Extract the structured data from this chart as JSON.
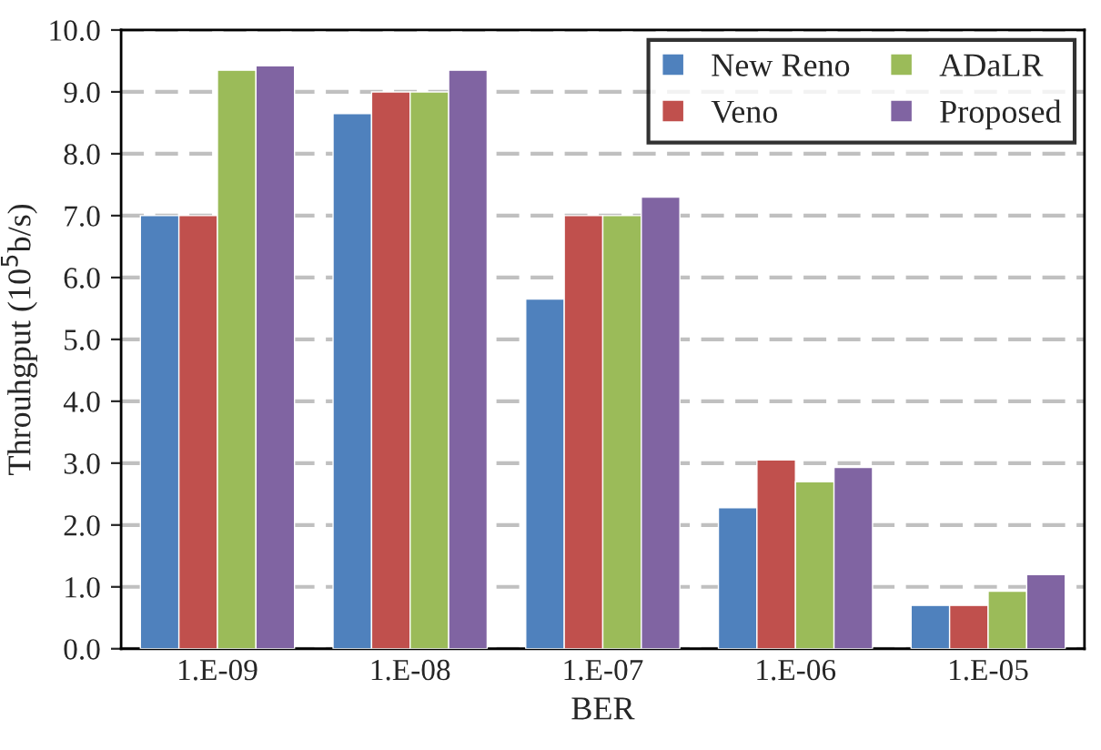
{
  "chart_data": {
    "type": "bar",
    "xlabel": "BER",
    "ylabel": "Throuhgput (10$^{5}$b/s)",
    "categories": [
      "1.E-09",
      "1.E-08",
      "1.E-07",
      "1.E-06",
      "1.E-05"
    ],
    "series": [
      {
        "name": "New Reno",
        "color": "#4f81bd",
        "values": [
          7.0,
          8.65,
          5.65,
          2.28,
          0.7
        ]
      },
      {
        "name": "Veno",
        "color": "#c0504d",
        "values": [
          7.0,
          9.0,
          7.0,
          3.05,
          0.7
        ]
      },
      {
        "name": "ADaLR",
        "color": "#9bbb59",
        "values": [
          9.35,
          9.0,
          7.0,
          2.7,
          0.93
        ]
      },
      {
        "name": "Proposed",
        "color": "#8064a2",
        "values": [
          9.42,
          9.35,
          7.3,
          2.93,
          1.2
        ]
      }
    ],
    "ylim": [
      0,
      10
    ],
    "yticks": [
      {
        "value": 0,
        "label": "0.0"
      },
      {
        "value": 1,
        "label": "1.0"
      },
      {
        "value": 2,
        "label": "2.0"
      },
      {
        "value": 3,
        "label": "3.0"
      },
      {
        "value": 4,
        "label": "4.0"
      },
      {
        "value": 5,
        "label": "5.0"
      },
      {
        "value": 6,
        "label": "6.0"
      },
      {
        "value": 7,
        "label": "7.0"
      },
      {
        "value": 8,
        "label": "8.0"
      },
      {
        "value": 9,
        "label": "9.0"
      },
      {
        "value": 10,
        "label": "10.0"
      }
    ],
    "grid": "y",
    "legend": "top right"
  }
}
